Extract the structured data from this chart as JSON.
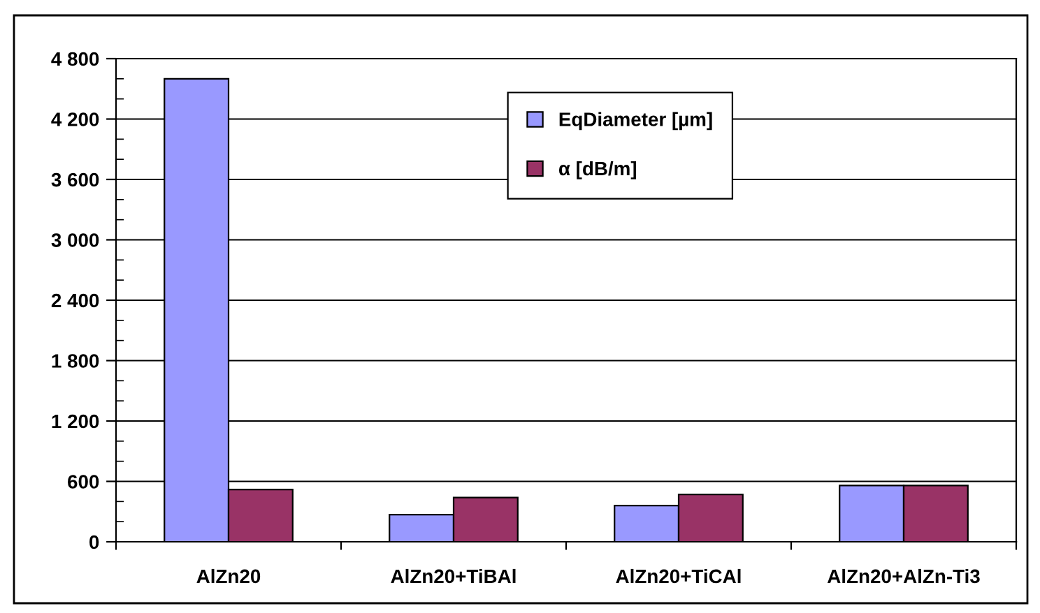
{
  "chart_data": {
    "type": "bar",
    "categories": [
      "AlZn20",
      "AlZn20+TiBAl",
      "AlZn20+TiCAl",
      "AlZn20+AlZn-Ti3"
    ],
    "series": [
      {
        "name": "EqDiameter [µm]",
        "color": "#9999ff",
        "values": [
          4600,
          270,
          360,
          560
        ]
      },
      {
        "name": "α [dB/m]",
        "color": "#993366",
        "values": [
          520,
          440,
          470,
          560
        ]
      }
    ],
    "ylim": [
      0,
      4800
    ],
    "yticks": [
      {
        "value": 0,
        "label": "0"
      },
      {
        "value": 600,
        "label": "600"
      },
      {
        "value": 1200,
        "label": "1 200"
      },
      {
        "value": 1800,
        "label": "1 800"
      },
      {
        "value": 2400,
        "label": "2 400"
      },
      {
        "value": 3000,
        "label": "3 000"
      },
      {
        "value": 3600,
        "label": "3 600"
      },
      {
        "value": 4200,
        "label": "4 200"
      },
      {
        "value": 4800,
        "label": "4 800"
      },
      {
        "value": 200,
        "label": null
      },
      {
        "value": 400,
        "label": null
      },
      {
        "value": 800,
        "label": null
      },
      {
        "value": 1000,
        "label": null
      },
      {
        "value": 1400,
        "label": null
      },
      {
        "value": 1600,
        "label": null
      },
      {
        "value": 2000,
        "label": null
      },
      {
        "value": 2200,
        "label": null
      },
      {
        "value": 2600,
        "label": null
      },
      {
        "value": 2800,
        "label": null
      },
      {
        "value": 3200,
        "label": null
      },
      {
        "value": 3400,
        "label": null
      },
      {
        "value": 3800,
        "label": null
      },
      {
        "value": 4000,
        "label": null
      },
      {
        "value": 4400,
        "label": null
      },
      {
        "value": 4600,
        "label": null
      }
    ],
    "grid": "y",
    "legend": "top"
  }
}
